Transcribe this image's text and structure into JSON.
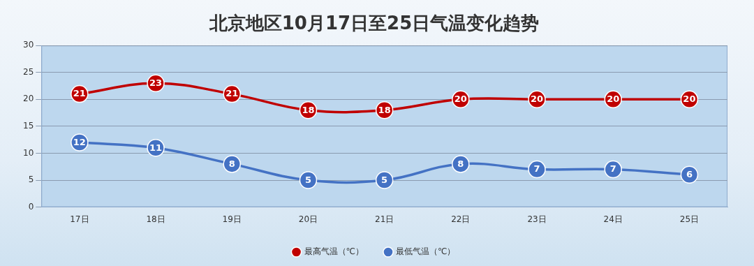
{
  "chart_data": {
    "type": "line",
    "title": "北京地区10月17日至25日气温变化趋势",
    "categories": [
      "17日",
      "18日",
      "19日",
      "20日",
      "21日",
      "22日",
      "23日",
      "24日",
      "25日"
    ],
    "series": [
      {
        "name": "最高气温（℃）",
        "color": "#c00000",
        "values": [
          21,
          23,
          21,
          18,
          18,
          20,
          20,
          20,
          20
        ]
      },
      {
        "name": "最低气温（℃）",
        "color": "#4472c4",
        "values": [
          12,
          11,
          8,
          5,
          5,
          8,
          7,
          7,
          6
        ]
      }
    ],
    "ylim": [
      0,
      30
    ],
    "yticks": [
      0,
      5,
      10,
      15,
      20,
      25,
      30
    ],
    "grid": true,
    "legend": "bottom",
    "data_labels": true,
    "marker": "circle",
    "line_style": "solid"
  }
}
